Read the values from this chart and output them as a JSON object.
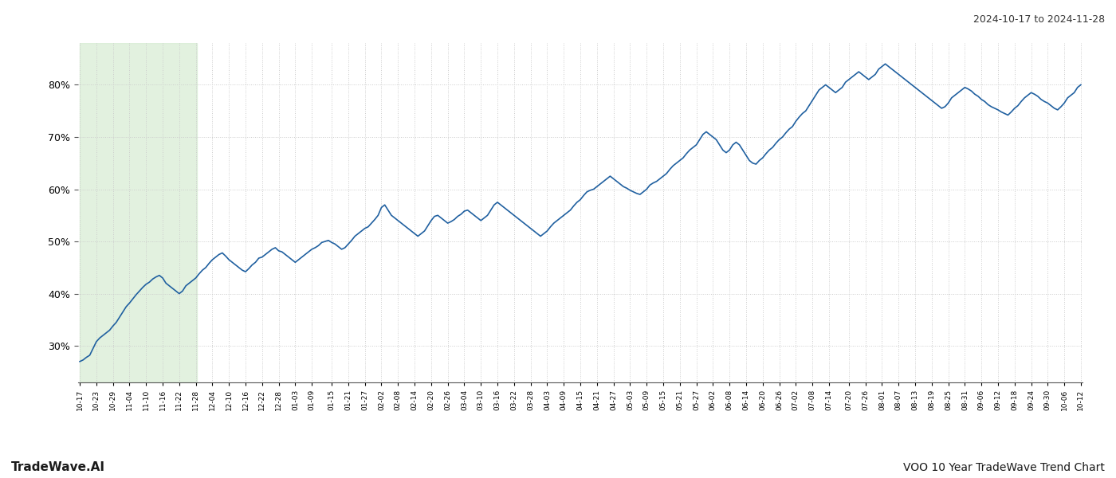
{
  "title_top_right": "2024-10-17 to 2024-11-28",
  "bottom_left": "TradeWave.AI",
  "bottom_right": "VOO 10 Year TradeWave Trend Chart",
  "line_color": "#2060a0",
  "line_width": 1.2,
  "shade_color": "#d6ecd2",
  "shade_alpha": 0.7,
  "background_color": "#ffffff",
  "grid_color": "#cccccc",
  "ylim": [
    23,
    88
  ],
  "yticks": [
    30,
    40,
    50,
    60,
    70,
    80
  ],
  "x_labels": [
    "10-17",
    "10-23",
    "10-29",
    "11-04",
    "11-10",
    "11-16",
    "11-22",
    "11-28",
    "12-04",
    "12-10",
    "12-16",
    "12-22",
    "12-28",
    "01-03",
    "01-09",
    "01-15",
    "01-21",
    "01-27",
    "02-02",
    "02-08",
    "02-14",
    "02-20",
    "02-26",
    "03-04",
    "03-10",
    "03-16",
    "03-22",
    "03-28",
    "04-03",
    "04-09",
    "04-15",
    "04-21",
    "04-27",
    "05-03",
    "05-09",
    "05-15",
    "05-21",
    "05-27",
    "06-02",
    "06-08",
    "06-14",
    "06-20",
    "06-26",
    "07-02",
    "07-08",
    "07-14",
    "07-20",
    "07-26",
    "08-01",
    "08-07",
    "08-13",
    "08-19",
    "08-25",
    "08-31",
    "09-06",
    "09-12",
    "09-18",
    "09-24",
    "09-30",
    "10-06",
    "10-12"
  ],
  "shade_start_label": "10-17",
  "shade_end_label": "11-28",
  "y_values": [
    27.0,
    27.3,
    27.8,
    28.2,
    29.5,
    30.8,
    31.5,
    32.0,
    32.5,
    33.0,
    33.8,
    34.5,
    35.5,
    36.5,
    37.5,
    38.2,
    39.0,
    39.8,
    40.5,
    41.2,
    41.8,
    42.2,
    42.8,
    43.2,
    43.5,
    43.0,
    42.0,
    41.5,
    41.0,
    40.5,
    40.0,
    40.5,
    41.5,
    42.0,
    42.5,
    43.0,
    43.8,
    44.5,
    45.0,
    45.8,
    46.5,
    47.0,
    47.5,
    47.8,
    47.2,
    46.5,
    46.0,
    45.5,
    45.0,
    44.5,
    44.2,
    44.8,
    45.5,
    46.0,
    46.8,
    47.0,
    47.5,
    48.0,
    48.5,
    48.8,
    48.2,
    48.0,
    47.5,
    47.0,
    46.5,
    46.0,
    46.5,
    47.0,
    47.5,
    48.0,
    48.5,
    48.8,
    49.2,
    49.8,
    50.0,
    50.2,
    49.8,
    49.5,
    49.0,
    48.5,
    48.8,
    49.5,
    50.2,
    51.0,
    51.5,
    52.0,
    52.5,
    52.8,
    53.5,
    54.2,
    55.0,
    56.5,
    57.0,
    56.0,
    55.0,
    54.5,
    54.0,
    53.5,
    53.0,
    52.5,
    52.0,
    51.5,
    51.0,
    51.5,
    52.0,
    53.0,
    54.0,
    54.8,
    55.0,
    54.5,
    54.0,
    53.5,
    53.8,
    54.2,
    54.8,
    55.2,
    55.8,
    56.0,
    55.5,
    55.0,
    54.5,
    54.0,
    54.5,
    55.0,
    56.0,
    57.0,
    57.5,
    57.0,
    56.5,
    56.0,
    55.5,
    55.0,
    54.5,
    54.0,
    53.5,
    53.0,
    52.5,
    52.0,
    51.5,
    51.0,
    51.5,
    52.0,
    52.8,
    53.5,
    54.0,
    54.5,
    55.0,
    55.5,
    56.0,
    56.8,
    57.5,
    58.0,
    58.8,
    59.5,
    59.8,
    60.0,
    60.5,
    61.0,
    61.5,
    62.0,
    62.5,
    62.0,
    61.5,
    61.0,
    60.5,
    60.2,
    59.8,
    59.5,
    59.2,
    59.0,
    59.5,
    60.0,
    60.8,
    61.2,
    61.5,
    62.0,
    62.5,
    63.0,
    63.8,
    64.5,
    65.0,
    65.5,
    66.0,
    66.8,
    67.5,
    68.0,
    68.5,
    69.5,
    70.5,
    71.0,
    70.5,
    70.0,
    69.5,
    68.5,
    67.5,
    67.0,
    67.5,
    68.5,
    69.0,
    68.5,
    67.5,
    66.5,
    65.5,
    65.0,
    64.8,
    65.5,
    66.0,
    66.8,
    67.5,
    68.0,
    68.8,
    69.5,
    70.0,
    70.8,
    71.5,
    72.0,
    73.0,
    73.8,
    74.5,
    75.0,
    76.0,
    77.0,
    78.0,
    79.0,
    79.5,
    80.0,
    79.5,
    79.0,
    78.5,
    79.0,
    79.5,
    80.5,
    81.0,
    81.5,
    82.0,
    82.5,
    82.0,
    81.5,
    81.0,
    81.5,
    82.0,
    83.0,
    83.5,
    84.0,
    83.5,
    83.0,
    82.5,
    82.0,
    81.5,
    81.0,
    80.5,
    80.0,
    79.5,
    79.0,
    78.5,
    78.0,
    77.5,
    77.0,
    76.5,
    76.0,
    75.5,
    75.8,
    76.5,
    77.5,
    78.0,
    78.5,
    79.0,
    79.5,
    79.2,
    78.8,
    78.2,
    77.8,
    77.2,
    76.8,
    76.2,
    75.8,
    75.5,
    75.2,
    74.8,
    74.5,
    74.2,
    74.8,
    75.5,
    76.0,
    76.8,
    77.5,
    78.0,
    78.5,
    78.2,
    77.8,
    77.2,
    76.8,
    76.5,
    76.0,
    75.5,
    75.2,
    75.8,
    76.5,
    77.5,
    78.0,
    78.5,
    79.5,
    80.0
  ]
}
